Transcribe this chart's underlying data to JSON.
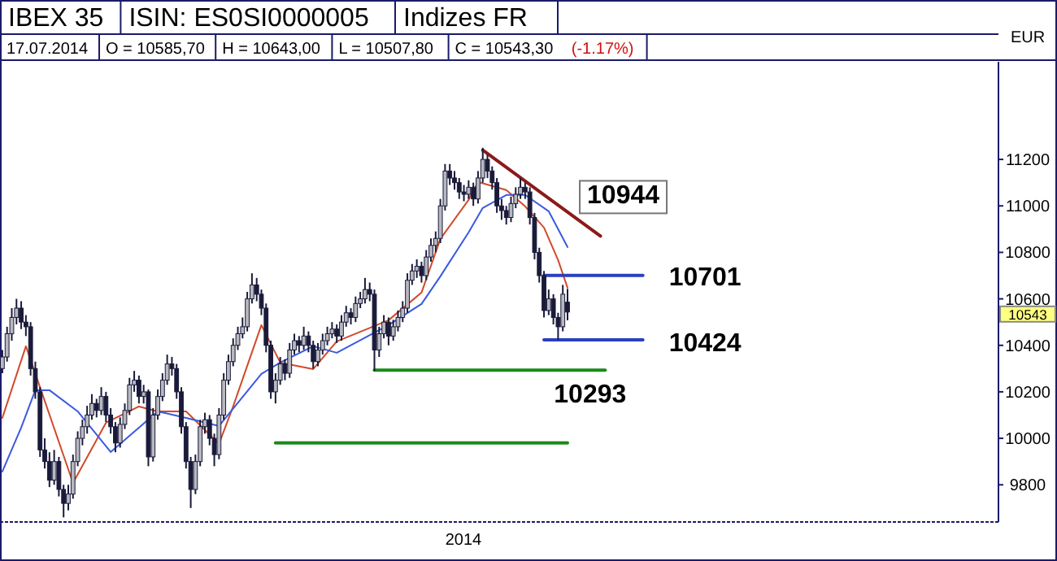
{
  "chart_data": {
    "type": "candlestick",
    "title": "IBEX 35",
    "subtitle": "ISIN: ES0SI0000005",
    "ylabel": "EUR",
    "annotations": [
      "Indizes FR",
      "17.07.2014",
      "O = 10585,70",
      "H = 10643,00",
      "L = 10507,80",
      "C = 10543,30",
      "(-1.17%)",
      "2014",
      "10944",
      "10701",
      "10424",
      "10293",
      "10543"
    ],
    "categories": [
      null,
      null,
      null,
      null,
      null,
      null,
      null,
      null,
      null,
      null,
      null,
      null,
      null,
      null,
      null,
      null,
      null,
      null,
      null,
      null,
      null,
      null,
      null,
      null,
      null,
      null,
      null,
      null,
      null,
      null,
      null,
      null,
      null,
      null,
      null,
      null,
      null,
      null,
      null,
      null,
      null,
      null,
      null,
      null,
      null,
      null,
      null,
      null,
      null,
      null,
      null,
      null,
      null,
      null,
      null,
      null,
      null,
      null,
      null,
      null,
      null,
      null,
      null,
      null,
      null,
      null,
      null,
      null,
      null,
      null,
      null,
      null,
      null,
      null,
      null,
      null,
      null,
      null,
      null,
      null,
      null,
      null,
      null,
      null,
      null,
      null,
      null,
      null,
      null,
      null,
      null,
      null,
      null,
      null,
      null,
      null,
      null,
      null,
      null,
      null,
      null,
      null,
      null,
      null,
      null,
      null,
      null,
      null,
      null,
      null,
      null,
      null,
      null,
      null,
      null,
      null,
      null,
      null,
      null,
      null,
      null,
      null,
      null,
      null,
      null,
      null,
      null,
      null,
      null,
      null,
      null,
      null,
      null,
      null,
      null,
      null,
      null,
      null,
      null,
      null,
      null,
      null,
      null,
      null,
      null,
      null,
      null,
      null,
      null,
      null,
      null,
      null,
      null,
      null,
      null,
      null,
      null,
      null,
      null,
      null,
      null,
      null,
      null,
      null,
      null,
      null,
      null,
      null,
      null,
      null,
      null,
      null,
      null,
      null,
      null,
      null,
      null,
      null,
      null,
      null,
      null,
      null,
      null,
      null,
      null,
      null,
      null,
      null,
      null,
      null,
      null,
      null,
      null,
      null,
      null,
      null,
      null,
      null,
      null,
      null,
      null,
      null,
      null,
      null,
      null,
      null,
      null,
      null,
      null,
      null,
      null,
      null
    ],
    "ylim": [
      9640,
      11620
    ],
    "yticks": [
      9800,
      10000,
      10200,
      10400,
      10600,
      10800,
      11000,
      11200
    ],
    "grid": false,
    "color": "#1a1a3a",
    "ohlc": [
      [
        10300,
        10380,
        10280,
        10350
      ],
      [
        10350,
        10480,
        10330,
        10450
      ],
      [
        10450,
        10560,
        10420,
        10520
      ],
      [
        10520,
        10600,
        10490,
        10560
      ],
      [
        10560,
        10590,
        10470,
        10500
      ],
      [
        10500,
        10530,
        10440,
        10480
      ],
      [
        10480,
        10500,
        10270,
        10300
      ],
      [
        10300,
        10330,
        10170,
        10200
      ],
      [
        10200,
        10220,
        9920,
        9950
      ],
      [
        9950,
        10000,
        9870,
        9900
      ],
      [
        9900,
        9940,
        9790,
        9820
      ],
      [
        9820,
        9950,
        9800,
        9900
      ],
      [
        9900,
        9920,
        9750,
        9780
      ],
      [
        9780,
        9800,
        9660,
        9720
      ],
      [
        9720,
        9800,
        9690,
        9760
      ],
      [
        9760,
        9930,
        9740,
        9900
      ],
      [
        9900,
        10030,
        9880,
        10000
      ],
      [
        10000,
        10080,
        9970,
        10050
      ],
      [
        10050,
        10140,
        10020,
        10100
      ],
      [
        10100,
        10190,
        10080,
        10150
      ],
      [
        10150,
        10170,
        10090,
        10120
      ],
      [
        10120,
        10220,
        10100,
        10180
      ],
      [
        10180,
        10200,
        10070,
        10100
      ],
      [
        10100,
        10130,
        10020,
        10050
      ],
      [
        10050,
        10070,
        9940,
        9980
      ],
      [
        9980,
        10090,
        9960,
        10060
      ],
      [
        10060,
        10150,
        10040,
        10120
      ],
      [
        10120,
        10260,
        10100,
        10230
      ],
      [
        10230,
        10290,
        10200,
        10250
      ],
      [
        10250,
        10270,
        10150,
        10180
      ],
      [
        10180,
        10230,
        10150,
        10200
      ],
      [
        10200,
        10210,
        9880,
        9920
      ],
      [
        9920,
        10130,
        9900,
        10100
      ],
      [
        10100,
        10210,
        10080,
        10180
      ],
      [
        10180,
        10280,
        10160,
        10250
      ],
      [
        10250,
        10360,
        10230,
        10320
      ],
      [
        10320,
        10350,
        10270,
        10300
      ],
      [
        10300,
        10320,
        10170,
        10200
      ],
      [
        10200,
        10220,
        10020,
        10050
      ],
      [
        10050,
        10070,
        9870,
        9900
      ],
      [
        9900,
        9920,
        9700,
        9780
      ],
      [
        9780,
        9930,
        9760,
        9900
      ],
      [
        9900,
        10080,
        9880,
        10050
      ],
      [
        10050,
        10110,
        10020,
        10080
      ],
      [
        10080,
        10100,
        9970,
        10000
      ],
      [
        10000,
        10020,
        9880,
        9930
      ],
      [
        9930,
        10130,
        9910,
        10100
      ],
      [
        10100,
        10280,
        10080,
        10250
      ],
      [
        10250,
        10360,
        10230,
        10330
      ],
      [
        10330,
        10430,
        10310,
        10400
      ],
      [
        10400,
        10480,
        10380,
        10450
      ],
      [
        10450,
        10520,
        10430,
        10480
      ],
      [
        10480,
        10630,
        10460,
        10600
      ],
      [
        10600,
        10710,
        10580,
        10660
      ],
      [
        10660,
        10690,
        10590,
        10620
      ],
      [
        10620,
        10640,
        10530,
        10560
      ],
      [
        10560,
        10580,
        10370,
        10400
      ],
      [
        10400,
        10420,
        10170,
        10200
      ],
      [
        10200,
        10280,
        10150,
        10250
      ],
      [
        10250,
        10350,
        10230,
        10320
      ],
      [
        10320,
        10340,
        10250,
        10280
      ],
      [
        10280,
        10410,
        10260,
        10380
      ],
      [
        10380,
        10450,
        10360,
        10420
      ],
      [
        10420,
        10440,
        10370,
        10400
      ],
      [
        10400,
        10480,
        10380,
        10440
      ],
      [
        10440,
        10460,
        10370,
        10400
      ],
      [
        10400,
        10420,
        10300,
        10330
      ],
      [
        10330,
        10410,
        10310,
        10380
      ],
      [
        10380,
        10450,
        10360,
        10420
      ],
      [
        10420,
        10480,
        10400,
        10450
      ],
      [
        10450,
        10500,
        10430,
        10470
      ],
      [
        10470,
        10490,
        10410,
        10440
      ],
      [
        10440,
        10530,
        10420,
        10500
      ],
      [
        10500,
        10570,
        10480,
        10540
      ],
      [
        10540,
        10560,
        10490,
        10520
      ],
      [
        10520,
        10610,
        10500,
        10580
      ],
      [
        10580,
        10630,
        10560,
        10600
      ],
      [
        10600,
        10690,
        10580,
        10640
      ],
      [
        10640,
        10670,
        10590,
        10620
      ],
      [
        10620,
        10640,
        10290,
        10380
      ],
      [
        10380,
        10480,
        10350,
        10450
      ],
      [
        10450,
        10530,
        10430,
        10500
      ],
      [
        10500,
        10520,
        10400,
        10440
      ],
      [
        10440,
        10510,
        10420,
        10480
      ],
      [
        10480,
        10550,
        10460,
        10520
      ],
      [
        10520,
        10590,
        10500,
        10560
      ],
      [
        10560,
        10710,
        10540,
        10680
      ],
      [
        10680,
        10750,
        10660,
        10720
      ],
      [
        10720,
        10770,
        10690,
        10740
      ],
      [
        10740,
        10760,
        10670,
        10700
      ],
      [
        10700,
        10810,
        10680,
        10780
      ],
      [
        10780,
        10860,
        10760,
        10830
      ],
      [
        10830,
        10890,
        10800,
        10860
      ],
      [
        10860,
        11030,
        10840,
        11000
      ],
      [
        11000,
        11180,
        10980,
        11150
      ],
      [
        11150,
        11180,
        11090,
        11120
      ],
      [
        11120,
        11150,
        11070,
        11100
      ],
      [
        11100,
        11120,
        11030,
        11060
      ],
      [
        11060,
        11090,
        11020,
        11050
      ],
      [
        11050,
        11110,
        11030,
        11080
      ],
      [
        11080,
        11100,
        11000,
        11030
      ],
      [
        11030,
        11150,
        11010,
        11120
      ],
      [
        11120,
        11250,
        11100,
        11200
      ],
      [
        11200,
        11220,
        11120,
        11150
      ],
      [
        11150,
        11170,
        11070,
        11100
      ],
      [
        11100,
        11120,
        10970,
        11000
      ],
      [
        11000,
        11030,
        10940,
        10980
      ],
      [
        10980,
        11000,
        10920,
        10950
      ],
      [
        10950,
        11040,
        10930,
        11010
      ],
      [
        11010,
        11080,
        10990,
        11050
      ],
      [
        11050,
        11120,
        11030,
        11080
      ],
      [
        11080,
        11100,
        11030,
        11060
      ],
      [
        11060,
        11080,
        10920,
        10950
      ],
      [
        10950,
        10970,
        10770,
        10800
      ],
      [
        10800,
        10820,
        10670,
        10700
      ],
      [
        10700,
        10720,
        10520,
        10550
      ],
      [
        10550,
        10640,
        10530,
        10600
      ],
      [
        10600,
        10620,
        10490,
        10520
      ],
      [
        10520,
        10540,
        10424,
        10480
      ],
      [
        10480,
        10660,
        10460,
        10620
      ],
      [
        10585.7,
        10643,
        10507.8,
        10543.3
      ],
      null,
      null,
      null,
      null,
      null,
      null,
      null,
      null,
      null,
      null,
      null,
      null,
      null,
      null,
      null,
      null,
      null,
      null,
      null,
      null,
      null,
      null,
      null,
      null,
      null,
      null,
      null,
      null,
      null,
      null,
      null,
      null,
      null,
      null,
      null,
      null,
      null,
      null,
      null,
      null,
      null,
      null,
      null,
      null,
      null,
      null,
      null,
      null,
      null,
      null,
      null,
      null,
      null,
      null,
      null,
      null,
      null,
      null,
      null,
      null,
      null,
      null,
      null,
      null,
      null,
      null,
      null,
      null,
      null,
      null,
      null,
      null,
      null,
      null,
      null,
      null,
      null,
      null,
      null,
      null,
      null,
      null,
      null,
      null,
      null,
      null,
      null,
      null,
      null,
      null,
      null
    ],
    "series": [
      {
        "type": "line",
        "color": "#d24a2a",
        "values": [
          10088,
          null,
          null,
          null,
          null,
          10396,
          null,
          null,
          null,
          null,
          null,
          null,
          null,
          null,
          null,
          9808,
          null,
          null,
          null,
          null,
          null,
          null,
          10067,
          null,
          null,
          null,
          null,
          null,
          null,
          10137,
          null,
          null,
          null,
          10116,
          null,
          null,
          null,
          null,
          null,
          10116,
          null,
          null,
          null,
          null,
          null,
          null,
          9976,
          null,
          null,
          10137,
          null,
          null,
          null,
          null,
          null,
          10487,
          null,
          null,
          null,
          10326,
          null,
          null,
          null,
          null,
          null,
          null,
          10298,
          null,
          null,
          null,
          null,
          10417,
          null,
          null,
          null,
          null,
          null,
          null,
          null,
          null,
          null,
          null,
          10508,
          null,
          null,
          null,
          null,
          null,
          null,
          10627,
          null,
          null,
          null,
          10858,
          null,
          null,
          null,
          null,
          null,
          11026,
          null,
          11103,
          null,
          null,
          null,
          null,
          null,
          11068,
          null,
          null,
          null,
          10998,
          null,
          null,
          null,
          10907,
          null,
          null,
          10767,
          null,
          10648,
          null,
          null,
          null,
          null,
          null,
          null,
          null,
          null,
          null,
          null,
          null,
          null,
          null,
          null,
          null,
          null,
          null,
          null,
          null,
          null,
          null,
          null,
          null,
          null,
          null,
          null,
          null,
          null,
          null,
          null,
          null,
          null,
          null,
          null,
          null,
          null,
          null,
          null,
          null,
          null,
          null,
          null,
          null,
          null,
          null,
          null,
          null,
          null,
          null,
          null,
          null,
          null,
          null,
          null,
          null,
          null,
          null,
          null,
          null,
          null,
          null,
          null,
          null,
          null,
          null,
          null,
          null,
          null,
          null,
          null,
          null,
          null,
          null,
          null,
          null,
          null,
          null,
          null,
          null,
          null,
          null,
          null,
          null,
          null,
          null,
          null,
          null,
          null,
          null,
          null,
          null
        ]
      },
      {
        "type": "line",
        "color": "#3a5ae0",
        "values": [
          9857,
          null,
          null,
          null,
          10046,
          null,
          null,
          10207,
          null,
          null,
          10207,
          null,
          null,
          null,
          null,
          null,
          10116,
          null,
          null,
          null,
          null,
          null,
          null,
          9941,
          null,
          null,
          null,
          null,
          null,
          10046,
          null,
          null,
          null,
          10116,
          null,
          null,
          null,
          null,
          null,
          10088,
          null,
          null,
          null,
          null,
          null,
          null,
          10053,
          null,
          null,
          null,
          null,
          null,
          null,
          null,
          null,
          10277,
          null,
          null,
          null,
          10326,
          null,
          null,
          null,
          null,
          null,
          null,
          10396,
          null,
          null,
          null,
          null,
          10368,
          null,
          null,
          null,
          null,
          null,
          null,
          null,
          null,
          null,
          null,
          10487,
          null,
          null,
          null,
          null,
          null,
          null,
          10578,
          null,
          null,
          null,
          10697,
          null,
          null,
          null,
          null,
          null,
          10886,
          null,
          null,
          10991,
          null,
          null,
          null,
          null,
          11047,
          null,
          null,
          null,
          11047,
          null,
          null,
          null,
          null,
          10977,
          null,
          null,
          null,
          10823,
          null,
          null,
          null,
          null,
          null,
          null,
          null,
          null,
          null,
          null,
          null,
          null,
          null,
          null,
          null,
          null,
          null,
          null,
          null,
          null,
          null,
          null,
          null,
          null,
          null,
          null,
          null,
          null,
          null,
          null,
          null,
          null,
          null,
          null,
          null,
          null,
          null,
          null,
          null,
          null,
          null,
          null,
          null,
          null,
          null,
          null,
          null,
          null,
          null,
          null,
          null,
          null,
          null,
          null,
          null,
          null,
          null,
          null,
          null,
          null,
          null,
          null,
          null,
          null,
          null,
          null,
          null,
          null,
          null,
          null,
          null,
          null,
          null,
          null,
          null,
          null,
          null,
          null,
          null,
          null,
          null,
          null,
          null,
          null,
          null,
          null,
          null,
          null,
          null,
          null,
          null
        ]
      },
      {
        "type": "line",
        "color": "#8b1a1a",
        "values": [
          null,
          null,
          null,
          null,
          null,
          null,
          null,
          null,
          null,
          null,
          null,
          null,
          null,
          null,
          null,
          null,
          null,
          null,
          null,
          null,
          null,
          null,
          null,
          null,
          null,
          null,
          null,
          null,
          null,
          null,
          null,
          null,
          null,
          null,
          null,
          null,
          null,
          null,
          null,
          null,
          null,
          null,
          null,
          null,
          null,
          null,
          null,
          null,
          null,
          null,
          null,
          null,
          null,
          null,
          null,
          null,
          null,
          null,
          null,
          null,
          null,
          null,
          null,
          null,
          null,
          null,
          null,
          null,
          null,
          null,
          null,
          null,
          null,
          null,
          null,
          null,
          null,
          null,
          null,
          null,
          null,
          null,
          null,
          null,
          null,
          null,
          null,
          null,
          null,
          null,
          null,
          null,
          null,
          null,
          null,
          null,
          null,
          null,
          null,
          null,
          null,
          null,
          11240,
          null,
          null,
          null,
          null,
          null,
          null,
          null,
          null,
          null,
          null,
          null,
          null,
          null,
          null,
          null,
          null,
          null,
          null,
          null,
          null,
          null,
          null,
          null,
          null,
          10870,
          null,
          null,
          null,
          null,
          null,
          null,
          null,
          null,
          null,
          null,
          null,
          null,
          null,
          null,
          null,
          null,
          null,
          null,
          null,
          null,
          null,
          null,
          null,
          null,
          null,
          null,
          null,
          null,
          null,
          null,
          null,
          null,
          null,
          null,
          null,
          null,
          null,
          null,
          null,
          null,
          null,
          null,
          null,
          null,
          null,
          null,
          null,
          null,
          null,
          null,
          null,
          null,
          null,
          null,
          null,
          null,
          null,
          null,
          null,
          null,
          null,
          null,
          null,
          null,
          null,
          null,
          null,
          null,
          null,
          null,
          null,
          null,
          null,
          null,
          null,
          null,
          null,
          null,
          null,
          null,
          null,
          null,
          null,
          null
        ]
      },
      {
        "type": "line",
        "color": "#2a3fbf",
        "values": [
          null,
          null,
          null,
          null,
          null,
          null,
          null,
          null,
          null,
          null,
          null,
          null,
          null,
          null,
          null,
          null,
          null,
          null,
          null,
          null,
          null,
          null,
          null,
          null,
          null,
          null,
          null,
          null,
          null,
          null,
          null,
          null,
          null,
          null,
          null,
          null,
          null,
          null,
          null,
          null,
          null,
          null,
          null,
          null,
          null,
          null,
          null,
          null,
          null,
          null,
          null,
          null,
          null,
          null,
          null,
          null,
          null,
          null,
          null,
          null,
          null,
          null,
          null,
          null,
          null,
          null,
          null,
          null,
          null,
          null,
          null,
          null,
          null,
          null,
          null,
          null,
          null,
          null,
          null,
          null,
          null,
          null,
          null,
          null,
          null,
          null,
          null,
          null,
          null,
          null,
          null,
          null,
          null,
          null,
          null,
          null,
          null,
          null,
          null,
          null,
          null,
          null,
          null,
          null,
          null,
          null,
          null,
          null,
          null,
          null,
          null,
          null,
          null,
          null,
          null,
          10701,
          null,
          null,
          null,
          null,
          null,
          null,
          null,
          null,
          null,
          null,
          null,
          null,
          null,
          null,
          null,
          null,
          null,
          null,
          null,
          null,
          10701,
          null,
          null,
          null,
          null,
          null,
          null,
          null,
          null,
          null,
          null,
          null,
          null,
          null,
          null,
          null,
          null,
          null,
          null,
          null,
          null,
          null,
          null,
          null,
          null,
          null,
          null,
          null,
          null,
          null,
          null,
          null,
          null,
          null,
          null,
          null,
          null,
          null,
          null,
          null,
          null,
          null,
          null,
          null,
          null,
          null,
          null,
          null,
          null,
          null,
          null,
          null,
          null,
          null,
          null,
          null,
          null,
          null,
          null,
          null,
          null,
          null,
          null,
          null,
          null,
          null,
          null,
          null,
          null,
          null,
          null,
          null,
          null,
          null,
          null,
          null
        ]
      },
      {
        "type": "line",
        "color": "#2a3fbf",
        "values": [
          null,
          null,
          null,
          null,
          null,
          null,
          null,
          null,
          null,
          null,
          null,
          null,
          null,
          null,
          null,
          null,
          null,
          null,
          null,
          null,
          null,
          null,
          null,
          null,
          null,
          null,
          null,
          null,
          null,
          null,
          null,
          null,
          null,
          null,
          null,
          null,
          null,
          null,
          null,
          null,
          null,
          null,
          null,
          null,
          null,
          null,
          null,
          null,
          null,
          null,
          null,
          null,
          null,
          null,
          null,
          null,
          null,
          null,
          null,
          null,
          null,
          null,
          null,
          null,
          null,
          null,
          null,
          null,
          null,
          null,
          null,
          null,
          null,
          null,
          null,
          null,
          null,
          null,
          null,
          null,
          null,
          null,
          null,
          null,
          null,
          null,
          null,
          null,
          null,
          null,
          null,
          null,
          null,
          null,
          null,
          null,
          null,
          null,
          null,
          null,
          null,
          null,
          null,
          null,
          null,
          null,
          null,
          null,
          null,
          null,
          null,
          null,
          null,
          null,
          null,
          10424,
          null,
          null,
          null,
          null,
          null,
          null,
          null,
          null,
          null,
          null,
          null,
          null,
          null,
          null,
          null,
          null,
          null,
          null,
          null,
          null,
          10424,
          null,
          null,
          null,
          null,
          null,
          null,
          null,
          null,
          null,
          null,
          null,
          null,
          null,
          null,
          null,
          null,
          null,
          null,
          null,
          null,
          null,
          null,
          null,
          null,
          null,
          null,
          null,
          null,
          null,
          null,
          null,
          null,
          null,
          null,
          null,
          null,
          null,
          null,
          null,
          null,
          null,
          null,
          null,
          null,
          null,
          null,
          null,
          null,
          null,
          null,
          null,
          null,
          null,
          null,
          null,
          null,
          null,
          null,
          null,
          null,
          null,
          null,
          null,
          null,
          null,
          null,
          null,
          null,
          null,
          null,
          null,
          null,
          null,
          null,
          null
        ]
      },
      {
        "type": "line",
        "color": "#1a8a1a",
        "values": [
          null,
          null,
          null,
          null,
          null,
          null,
          null,
          null,
          null,
          null,
          null,
          null,
          null,
          null,
          null,
          null,
          null,
          null,
          null,
          null,
          null,
          null,
          null,
          null,
          null,
          null,
          null,
          null,
          null,
          null,
          null,
          null,
          null,
          null,
          null,
          null,
          null,
          null,
          null,
          null,
          null,
          null,
          null,
          null,
          null,
          null,
          null,
          null,
          null,
          null,
          null,
          null,
          null,
          null,
          null,
          null,
          null,
          null,
          null,
          null,
          null,
          null,
          null,
          null,
          null,
          null,
          null,
          null,
          null,
          null,
          null,
          null,
          null,
          null,
          null,
          null,
          null,
          null,
          null,
          10293,
          null,
          null,
          null,
          null,
          null,
          null,
          null,
          null,
          null,
          null,
          null,
          null,
          null,
          null,
          null,
          null,
          null,
          null,
          null,
          null,
          null,
          null,
          null,
          null,
          null,
          null,
          null,
          null,
          null,
          null,
          null,
          null,
          null,
          null,
          null,
          null,
          null,
          null,
          null,
          null,
          null,
          null,
          null,
          null,
          null,
          null,
          null,
          null,
          10293,
          null,
          null,
          null,
          null,
          null,
          null,
          null,
          null,
          null,
          null,
          null,
          null,
          null,
          null,
          null,
          null,
          null,
          null,
          null,
          null,
          null,
          null,
          null,
          null,
          null,
          null,
          null,
          null,
          null,
          null,
          null,
          null,
          null,
          null,
          null,
          null,
          null,
          null,
          null,
          null,
          null,
          null,
          null,
          null,
          null,
          null,
          null,
          null,
          null,
          null,
          null,
          null,
          null,
          null,
          null,
          null,
          null,
          null,
          null,
          null,
          null,
          null,
          null,
          null,
          null,
          null,
          null,
          null,
          null,
          null,
          null,
          null,
          null,
          null,
          null,
          null,
          null,
          null,
          null,
          null,
          null,
          null,
          null
        ]
      },
      {
        "type": "line",
        "color": "#1a8a1a",
        "values": [
          null,
          null,
          null,
          null,
          null,
          null,
          null,
          null,
          null,
          null,
          null,
          null,
          null,
          null,
          null,
          null,
          null,
          null,
          null,
          null,
          null,
          null,
          null,
          null,
          null,
          null,
          null,
          null,
          null,
          null,
          null,
          null,
          null,
          null,
          null,
          null,
          null,
          null,
          null,
          null,
          null,
          null,
          null,
          null,
          null,
          null,
          null,
          null,
          null,
          null,
          null,
          null,
          null,
          null,
          null,
          null,
          null,
          null,
          9980,
          null,
          null,
          null,
          null,
          null,
          null,
          null,
          null,
          null,
          null,
          null,
          null,
          null,
          null,
          null,
          null,
          null,
          null,
          null,
          null,
          null,
          null,
          null,
          null,
          null,
          null,
          null,
          null,
          null,
          null,
          null,
          null,
          null,
          null,
          null,
          null,
          null,
          null,
          null,
          null,
          null,
          null,
          null,
          null,
          null,
          null,
          null,
          null,
          null,
          null,
          null,
          null,
          null,
          null,
          null,
          null,
          null,
          null,
          null,
          null,
          null,
          9980,
          null,
          null,
          null,
          null,
          null,
          null,
          null,
          null,
          null,
          null,
          null,
          null,
          null,
          null,
          null,
          null,
          null,
          null,
          null,
          null,
          null,
          null,
          null,
          null,
          null,
          null,
          null,
          null,
          null,
          null,
          null,
          null,
          null,
          null,
          null,
          null,
          null,
          null,
          null,
          null,
          null,
          null,
          null,
          null,
          null,
          null,
          null,
          null,
          null,
          null,
          null,
          null,
          null,
          null,
          null,
          null,
          null,
          null,
          null,
          null,
          null,
          null,
          null,
          null,
          null,
          null,
          null,
          null,
          null,
          null,
          null,
          null,
          null,
          null,
          null,
          null,
          null,
          null,
          null,
          null,
          null,
          null,
          null,
          null,
          null,
          null,
          null,
          null,
          null,
          null,
          null
        ]
      }
    ]
  }
}
